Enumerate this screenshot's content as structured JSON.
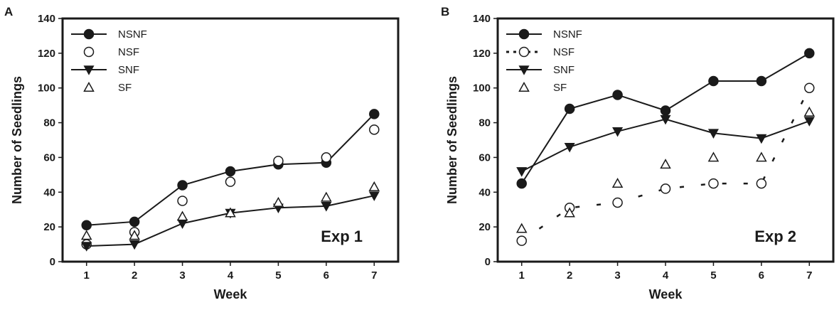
{
  "chart_data": [
    {
      "panel": "A",
      "type": "line",
      "annotation": "Exp 1",
      "xlabel": "Week",
      "ylabel": "Number of Seedlings",
      "x": [
        1,
        2,
        3,
        4,
        5,
        6,
        7
      ],
      "xticks": [
        "1",
        "2",
        "3",
        "4",
        "5",
        "6",
        "7"
      ],
      "yticks": [
        "0",
        "20",
        "40",
        "60",
        "80",
        "100",
        "120",
        "140"
      ],
      "xlim": [
        0.5,
        7.5
      ],
      "ylim": [
        0,
        140
      ],
      "legend_position": "top-left",
      "grid": false,
      "series": [
        {
          "name": "NSNF",
          "marker": "circle-filled",
          "line": "solid",
          "values": [
            21,
            23,
            44,
            52,
            56,
            57,
            85
          ]
        },
        {
          "name": "NSF",
          "marker": "circle-open",
          "line": "none",
          "values": [
            10,
            17,
            35,
            46,
            58,
            60,
            76
          ]
        },
        {
          "name": "SNF",
          "marker": "triangle-down-filled",
          "line": "solid",
          "values": [
            9,
            10,
            22,
            28,
            31,
            32,
            38
          ]
        },
        {
          "name": "SF",
          "marker": "triangle-up-open",
          "line": "none",
          "values": [
            15,
            15,
            26,
            28,
            34,
            37,
            43
          ]
        }
      ]
    },
    {
      "panel": "B",
      "type": "line",
      "annotation": "Exp 2",
      "xlabel": "Week",
      "ylabel": "Number of Seedlings",
      "x": [
        1,
        2,
        3,
        4,
        5,
        6,
        7
      ],
      "xticks": [
        "1",
        "2",
        "3",
        "4",
        "5",
        "6",
        "7"
      ],
      "yticks": [
        "0",
        "20",
        "40",
        "60",
        "80",
        "100",
        "120",
        "140"
      ],
      "xlim": [
        0.5,
        7.5
      ],
      "ylim": [
        0,
        140
      ],
      "legend_position": "top-left",
      "grid": false,
      "series": [
        {
          "name": "NSNF",
          "marker": "circle-filled",
          "line": "solid",
          "values": [
            45,
            88,
            96,
            87,
            104,
            104,
            120
          ]
        },
        {
          "name": "NSF",
          "marker": "circle-open",
          "line": "dotted",
          "values": [
            12,
            31,
            34,
            42,
            45,
            45,
            100
          ]
        },
        {
          "name": "SNF",
          "marker": "triangle-down-filled",
          "line": "solid",
          "values": [
            52,
            66,
            75,
            82,
            74,
            71,
            81
          ]
        },
        {
          "name": "SF",
          "marker": "triangle-up-open",
          "line": "none",
          "values": [
            19,
            28,
            45,
            56,
            60,
            60,
            86
          ]
        }
      ]
    }
  ]
}
